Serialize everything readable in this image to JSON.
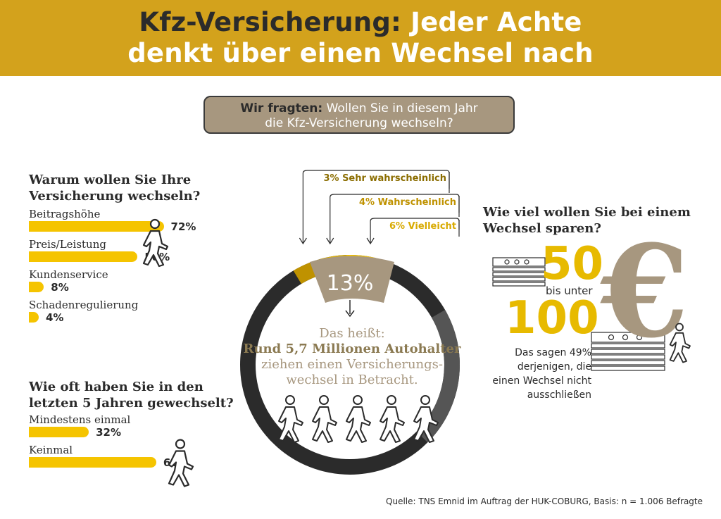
{
  "header": {
    "title_part1": "Kfz-Versicherung:",
    "title_part2": "Jeder Achte",
    "title_line2": "denkt über einen Wechsel nach"
  },
  "question": {
    "lead": "Wir fragten:",
    "line1_rest": "Wollen Sie in diesem Jahr",
    "line2": "die Kfz-Versicherung wechseln?"
  },
  "reasons": {
    "heading_line1": "Warum wollen Sie Ihre",
    "heading_line2": "Versicherung wechseln?"
  },
  "frequency": {
    "heading_line1": "Wie oft haben Sie in den",
    "heading_line2": "letzten 5 Jahren gewechselt?"
  },
  "donut": {
    "center_value": "13%",
    "line1": "Das heißt:",
    "line2": "Rund 5,7 Millionen Autohalter",
    "line3": "ziehen einen Versicherungs-",
    "line4": "wechsel in Betracht."
  },
  "savings": {
    "heading_line1": "Wie viel wollen Sie bei einem",
    "heading_line2": "Wechsel sparen?",
    "low": "50",
    "between": "bis unter",
    "high": "100",
    "currency": "€",
    "note_line1": "Das sagen 49%",
    "note_line2": "derjenigen, die",
    "note_line3": "einen Wechsel nicht",
    "note_line4": "ausschließen"
  },
  "source": "Quelle: TNS Emnid im Auftrag der HUK-COBURG, Basis: n = 1.006 Befragte",
  "colors": {
    "gold": "#d3a21c",
    "yellow": "#f5c400",
    "taupe": "#a7977f",
    "dark": "#2b2b2b"
  },
  "chart_data": [
    {
      "type": "bar",
      "categories": [
        "Beitragshöhe",
        "Preis/Leistung",
        "Kundenservice",
        "Schadenregulierung"
      ],
      "values": [
        72,
        58,
        8,
        4
      ],
      "labels": [
        "72%",
        "58%",
        "8%",
        "4%"
      ],
      "title": "Warum wollen Sie Ihre Versicherung wechseln?"
    },
    {
      "type": "bar",
      "categories": [
        "Mindestens einmal",
        "Keinmal"
      ],
      "values": [
        32,
        68
      ],
      "labels": [
        "32%",
        "68%"
      ],
      "title": "Wie oft haben Sie in den letzten 5 Jahren gewechselt?"
    },
    {
      "type": "pie",
      "categories": [
        "Sehr wahrscheinlich",
        "Wahrscheinlich",
        "Vielleicht"
      ],
      "values": [
        3,
        4,
        6
      ],
      "labels": [
        "3%",
        "4%",
        "6%"
      ],
      "total_label": "13%"
    }
  ]
}
